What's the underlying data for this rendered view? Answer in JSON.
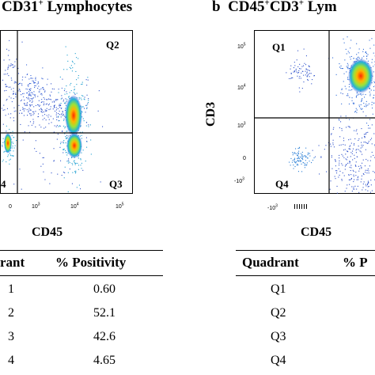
{
  "panel_a": {
    "title_pre": "CD31",
    "title_sup": "+",
    "title_post": " Lymphocytes",
    "quadrants": {
      "q2": "Q2",
      "q3": "Q3",
      "q4": "4"
    },
    "x_ticks": [
      "0",
      "10",
      "3",
      "10",
      "4",
      "10",
      "5"
    ],
    "x_axis_label": "CD45",
    "table": {
      "headers": [
        "rant",
        "% Positivity"
      ],
      "rows": [
        {
          "q": "1",
          "v": "0.60"
        },
        {
          "q": "2",
          "v": "52.1"
        },
        {
          "q": "3",
          "v": "42.6"
        },
        {
          "q": "4",
          "v": "4.65"
        }
      ]
    }
  },
  "panel_b": {
    "letter": "b",
    "title_pre": "CD45",
    "title_sup1": "+",
    "title_mid": "CD3",
    "title_sup2": "+",
    "title_post": " Lym",
    "quadrants": {
      "q1": "Q1",
      "q4": "Q4"
    },
    "y_axis_label": "CD3",
    "x_axis_label": "CD45",
    "y_ticks": [
      {
        "base": "10",
        "exp": "5"
      },
      {
        "base": "10",
        "exp": "4"
      },
      {
        "base": "10",
        "exp": "3"
      },
      {
        "base": "0",
        "exp": ""
      },
      {
        "base": "-10",
        "exp": "3"
      }
    ],
    "x_ticks": [
      {
        "base": "-10",
        "exp": "3"
      }
    ],
    "table": {
      "headers": [
        "Quadrant",
        "% P"
      ],
      "rows": [
        "Q1",
        "Q2",
        "Q3",
        "Q4"
      ]
    }
  }
}
